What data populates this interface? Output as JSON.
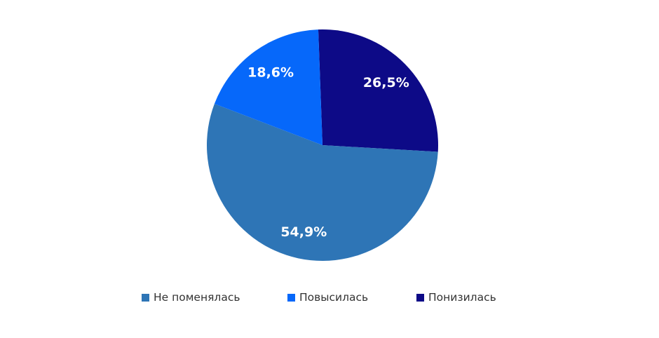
{
  "chart_data": {
    "type": "pie",
    "title": "",
    "slices": [
      {
        "name": "Понизилась",
        "value": 26.5,
        "label": "26,5%",
        "color": "#0d0a87"
      },
      {
        "name": "Не поменялась",
        "value": 54.9,
        "label": "54,9%",
        "color": "#2e75b6"
      },
      {
        "name": "Повысилась",
        "value": 18.6,
        "label": "18,6%",
        "color": "#0668fa"
      }
    ],
    "legend": {
      "position": "bottom",
      "items": [
        {
          "name": "Не поменялась",
          "color": "#2e75b6"
        },
        {
          "name": "Повысилась",
          "color": "#0668fa"
        },
        {
          "name": "Понизилась",
          "color": "#0d0a87"
        }
      ]
    }
  }
}
